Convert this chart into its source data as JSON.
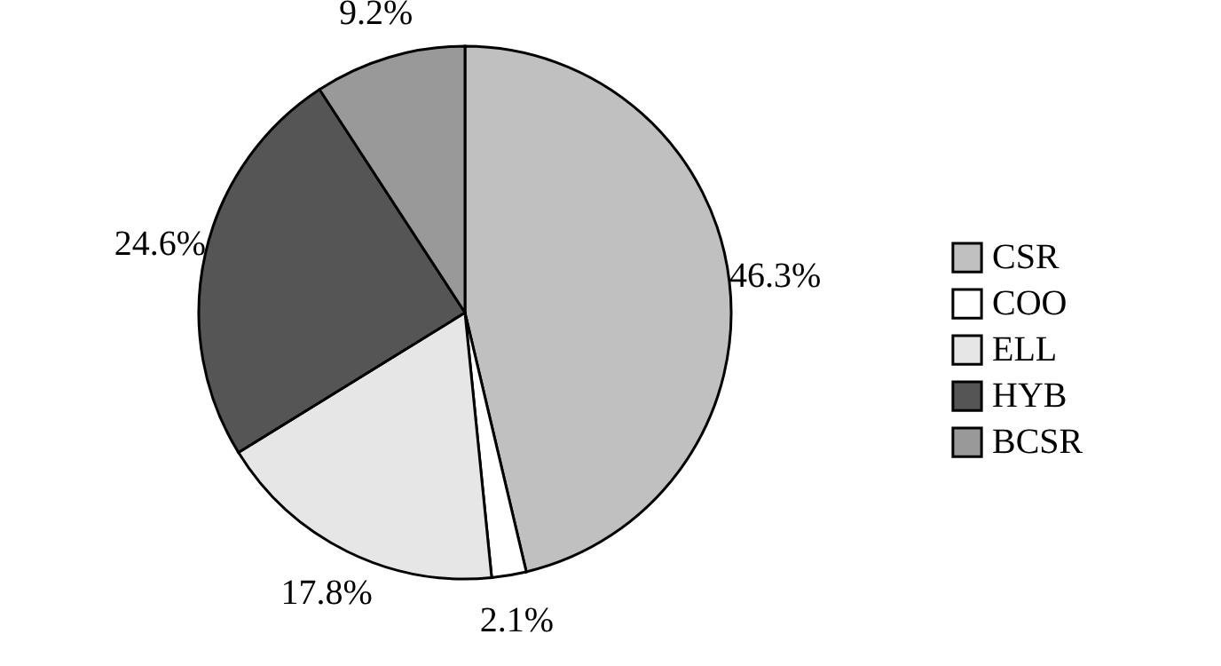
{
  "chart_data": {
    "type": "pie",
    "categories": [
      "CSR",
      "COO",
      "ELL",
      "HYB",
      "BCSR"
    ],
    "values": [
      46.3,
      2.1,
      17.8,
      24.6,
      9.2
    ],
    "colors": [
      "#c0c0c0",
      "#ffffff",
      "#e6e6e6",
      "#555555",
      "#999999"
    ],
    "value_labels": [
      "46.3%",
      "2.1%",
      "17.8%",
      "24.6%",
      "9.2%"
    ],
    "legend": "right"
  }
}
